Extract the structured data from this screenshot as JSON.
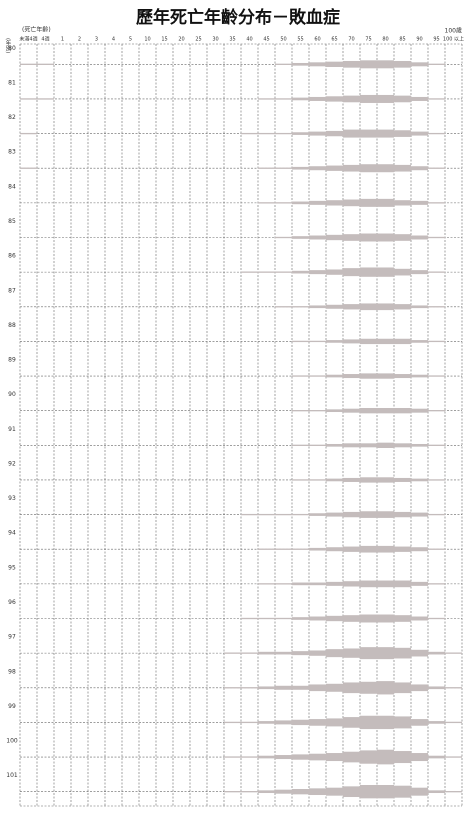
{
  "chart_data": {
    "type": "mirror-bar",
    "title": "歷年死亡年齡分布－敗血症",
    "x_label": "(死亡年齡)",
    "y_label": "(年別)",
    "top_right_label": "100歲",
    "categories": [
      "未滿4週",
      "4週",
      "1",
      "2",
      "3",
      "4",
      "5",
      "10",
      "15",
      "20",
      "25",
      "30",
      "35",
      "40",
      "45",
      "50",
      "55",
      "60",
      "65",
      "70",
      "75",
      "80",
      "85",
      "90",
      "95",
      "100 以上"
    ],
    "color": "#c4bcbc",
    "ylim": [
      0,
      12
    ],
    "series": [
      {
        "name": "80",
        "values": [
          1,
          1,
          0,
          0,
          0,
          0,
          0,
          0,
          0,
          0,
          0,
          0,
          0,
          0,
          0,
          1,
          2,
          3,
          4,
          5,
          6,
          6,
          5,
          3,
          1,
          0
        ]
      },
      {
        "name": "81",
        "values": [
          1,
          1,
          0,
          0,
          0,
          0,
          0,
          0,
          0,
          0,
          0,
          0,
          0,
          0,
          1,
          1,
          2,
          3,
          4,
          5,
          6,
          6,
          5,
          3,
          1,
          0
        ]
      },
      {
        "name": "82",
        "values": [
          1,
          0,
          0,
          0,
          0,
          0,
          0,
          0,
          0,
          0,
          0,
          0,
          0,
          1,
          1,
          1,
          2,
          3,
          4,
          6,
          6,
          6,
          5,
          3,
          1,
          0
        ]
      },
      {
        "name": "83",
        "values": [
          1,
          0,
          0,
          0,
          0,
          0,
          0,
          0,
          0,
          0,
          0,
          0,
          0,
          0,
          1,
          1,
          2,
          3,
          4,
          5,
          6,
          6,
          5,
          3,
          1,
          0
        ]
      },
      {
        "name": "84",
        "values": [
          0,
          0,
          0,
          0,
          0,
          0,
          0,
          0,
          0,
          0,
          0,
          0,
          0,
          0,
          1,
          1,
          2,
          3,
          4,
          5,
          6,
          6,
          4,
          3,
          1,
          0
        ]
      },
      {
        "name": "85",
        "values": [
          0,
          0,
          0,
          0,
          0,
          0,
          0,
          0,
          0,
          0,
          0,
          0,
          0,
          0,
          0,
          1,
          2,
          3,
          4,
          5,
          6,
          6,
          5,
          3,
          1,
          0
        ]
      },
      {
        "name": "86",
        "values": [
          0,
          0,
          0,
          0,
          0,
          0,
          0,
          0,
          0,
          0,
          0,
          0,
          0,
          1,
          1,
          1,
          2,
          3,
          4,
          6,
          7,
          7,
          5,
          3,
          1,
          0
        ]
      },
      {
        "name": "87",
        "values": [
          0,
          0,
          0,
          0,
          0,
          0,
          0,
          0,
          0,
          0,
          0,
          0,
          0,
          0,
          0,
          1,
          1,
          2,
          3,
          4,
          5,
          5,
          4,
          2,
          1,
          0
        ]
      },
      {
        "name": "88",
        "values": [
          0,
          0,
          0,
          0,
          0,
          0,
          0,
          0,
          0,
          0,
          0,
          0,
          0,
          0,
          0,
          0,
          1,
          1,
          2,
          3,
          4,
          4,
          4,
          2,
          1,
          0
        ]
      },
      {
        "name": "89",
        "values": [
          0,
          0,
          0,
          0,
          0,
          0,
          0,
          0,
          0,
          0,
          0,
          0,
          0,
          0,
          0,
          0,
          1,
          1,
          2,
          3,
          4,
          4,
          3,
          2,
          1,
          0
        ]
      },
      {
        "name": "90",
        "values": [
          0,
          0,
          0,
          0,
          0,
          0,
          0,
          0,
          0,
          0,
          0,
          0,
          0,
          0,
          0,
          0,
          1,
          1,
          2,
          3,
          4,
          4,
          4,
          3,
          1,
          0
        ]
      },
      {
        "name": "91",
        "values": [
          0,
          0,
          0,
          0,
          0,
          0,
          0,
          0,
          0,
          0,
          0,
          0,
          0,
          0,
          0,
          0,
          1,
          1,
          2,
          3,
          3,
          4,
          3,
          2,
          1,
          0
        ]
      },
      {
        "name": "92",
        "values": [
          0,
          0,
          0,
          0,
          0,
          0,
          0,
          0,
          0,
          0,
          0,
          0,
          0,
          0,
          0,
          0,
          1,
          1,
          2,
          3,
          4,
          4,
          3,
          2,
          1,
          0
        ]
      },
      {
        "name": "93",
        "values": [
          0,
          0,
          0,
          0,
          0,
          0,
          0,
          0,
          0,
          0,
          0,
          0,
          0,
          1,
          1,
          1,
          1,
          2,
          3,
          4,
          5,
          5,
          4,
          3,
          1,
          0
        ]
      },
      {
        "name": "94",
        "values": [
          0,
          0,
          0,
          0,
          0,
          0,
          0,
          0,
          0,
          0,
          0,
          0,
          0,
          0,
          1,
          1,
          1,
          2,
          3,
          4,
          5,
          5,
          4,
          3,
          1,
          0
        ]
      },
      {
        "name": "95",
        "values": [
          0,
          0,
          0,
          0,
          0,
          0,
          0,
          0,
          0,
          0,
          0,
          0,
          0,
          0,
          1,
          1,
          2,
          2,
          3,
          4,
          5,
          5,
          5,
          3,
          1,
          0
        ]
      },
      {
        "name": "96",
        "values": [
          0,
          0,
          0,
          0,
          0,
          0,
          0,
          0,
          0,
          0,
          0,
          0,
          0,
          1,
          1,
          1,
          2,
          3,
          4,
          5,
          6,
          6,
          5,
          3,
          1,
          0
        ]
      },
      {
        "name": "97",
        "values": [
          0,
          0,
          0,
          0,
          0,
          0,
          0,
          0,
          0,
          0,
          0,
          0,
          1,
          1,
          2,
          2,
          3,
          4,
          6,
          7,
          9,
          9,
          8,
          5,
          2,
          1
        ]
      },
      {
        "name": "98",
        "values": [
          0,
          0,
          0,
          0,
          0,
          0,
          0,
          0,
          0,
          0,
          0,
          0,
          1,
          1,
          2,
          3,
          3,
          5,
          6,
          8,
          9,
          10,
          8,
          5,
          2,
          1
        ]
      },
      {
        "name": "99",
        "values": [
          0,
          0,
          0,
          0,
          0,
          0,
          0,
          0,
          0,
          0,
          0,
          0,
          1,
          1,
          2,
          3,
          4,
          5,
          6,
          8,
          10,
          10,
          9,
          5,
          2,
          1
        ]
      },
      {
        "name": "100",
        "values": [
          0,
          0,
          0,
          0,
          0,
          0,
          0,
          0,
          0,
          0,
          0,
          0,
          1,
          1,
          2,
          3,
          4,
          5,
          6,
          8,
          10,
          11,
          9,
          6,
          2,
          1
        ]
      },
      {
        "name": "101",
        "values": [
          0,
          0,
          0,
          0,
          0,
          0,
          0,
          0,
          0,
          0,
          0,
          0,
          1,
          1,
          2,
          3,
          4,
          5,
          6,
          8,
          10,
          10,
          9,
          6,
          2,
          1
        ]
      }
    ]
  }
}
